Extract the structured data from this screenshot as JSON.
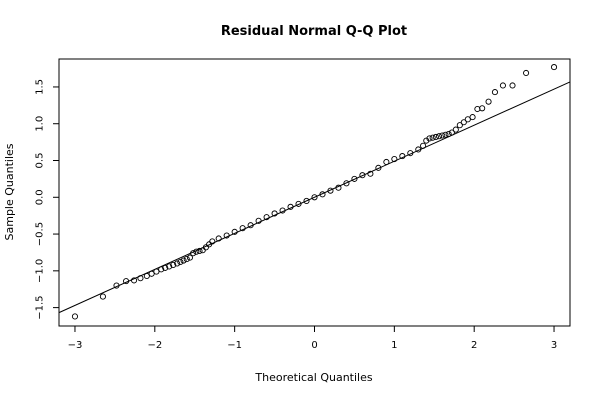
{
  "chart_data": {
    "type": "scatter",
    "title": "Residual Normal Q-Q Plot",
    "xlabel": "Theoretical Quantiles",
    "ylabel": "Sample Quantiles",
    "xlim": [
      -3.2,
      3.2
    ],
    "ylim": [
      -1.75,
      1.88
    ],
    "xticks": [
      -3,
      -2,
      -1,
      0,
      1,
      2,
      3
    ],
    "xtick_labels": [
      "−3",
      "−2",
      "−1",
      "0",
      "1",
      "2",
      "3"
    ],
    "yticks": [
      -1.5,
      -1.0,
      -0.5,
      0.0,
      0.5,
      1.0,
      1.5
    ],
    "ytick_labels": [
      "−1.5",
      "−1.0",
      "−0.5",
      "0.0",
      "0.5",
      "1.0",
      "1.5"
    ],
    "grid": false,
    "reference_line": {
      "intercept": 0.0,
      "slope": 0.49
    },
    "point_style": "open-circle",
    "points": {
      "x": [
        -3.0,
        -2.65,
        -2.48,
        -2.36,
        -2.26,
        -2.18,
        -2.1,
        -2.04,
        -1.98,
        -1.92,
        -1.87,
        -1.82,
        -1.77,
        -1.72,
        -1.68,
        -1.64,
        -1.6,
        -1.56,
        -1.52,
        -1.48,
        -1.44,
        -1.4,
        -1.36,
        -1.32,
        -1.28,
        -1.2,
        -1.1,
        -1.0,
        -0.9,
        -0.8,
        -0.7,
        -0.6,
        -0.5,
        -0.4,
        -0.3,
        -0.2,
        -0.1,
        0.0,
        0.1,
        0.2,
        0.3,
        0.4,
        0.5,
        0.6,
        0.7,
        0.8,
        0.9,
        1.0,
        1.1,
        1.2,
        1.3,
        1.36,
        1.4,
        1.44,
        1.48,
        1.52,
        1.56,
        1.6,
        1.64,
        1.68,
        1.72,
        1.77,
        1.82,
        1.87,
        1.92,
        1.98,
        2.04,
        2.1,
        2.18,
        2.26,
        2.36,
        2.48,
        2.65,
        3.0
      ],
      "y": [
        -1.62,
        -1.35,
        -1.2,
        -1.14,
        -1.13,
        -1.1,
        -1.07,
        -1.04,
        -1.01,
        -0.98,
        -0.96,
        -0.94,
        -0.92,
        -0.9,
        -0.88,
        -0.86,
        -0.84,
        -0.82,
        -0.76,
        -0.74,
        -0.73,
        -0.72,
        -0.68,
        -0.64,
        -0.6,
        -0.56,
        -0.52,
        -0.47,
        -0.42,
        -0.38,
        -0.32,
        -0.27,
        -0.22,
        -0.18,
        -0.13,
        -0.09,
        -0.05,
        0.0,
        0.04,
        0.09,
        0.13,
        0.19,
        0.25,
        0.3,
        0.32,
        0.4,
        0.48,
        0.52,
        0.56,
        0.6,
        0.65,
        0.7,
        0.77,
        0.8,
        0.81,
        0.82,
        0.83,
        0.84,
        0.85,
        0.86,
        0.88,
        0.92,
        0.98,
        1.02,
        1.06,
        1.09,
        1.2,
        1.21,
        1.3,
        1.43,
        1.52,
        1.52,
        1.69,
        1.77
      ]
    }
  }
}
